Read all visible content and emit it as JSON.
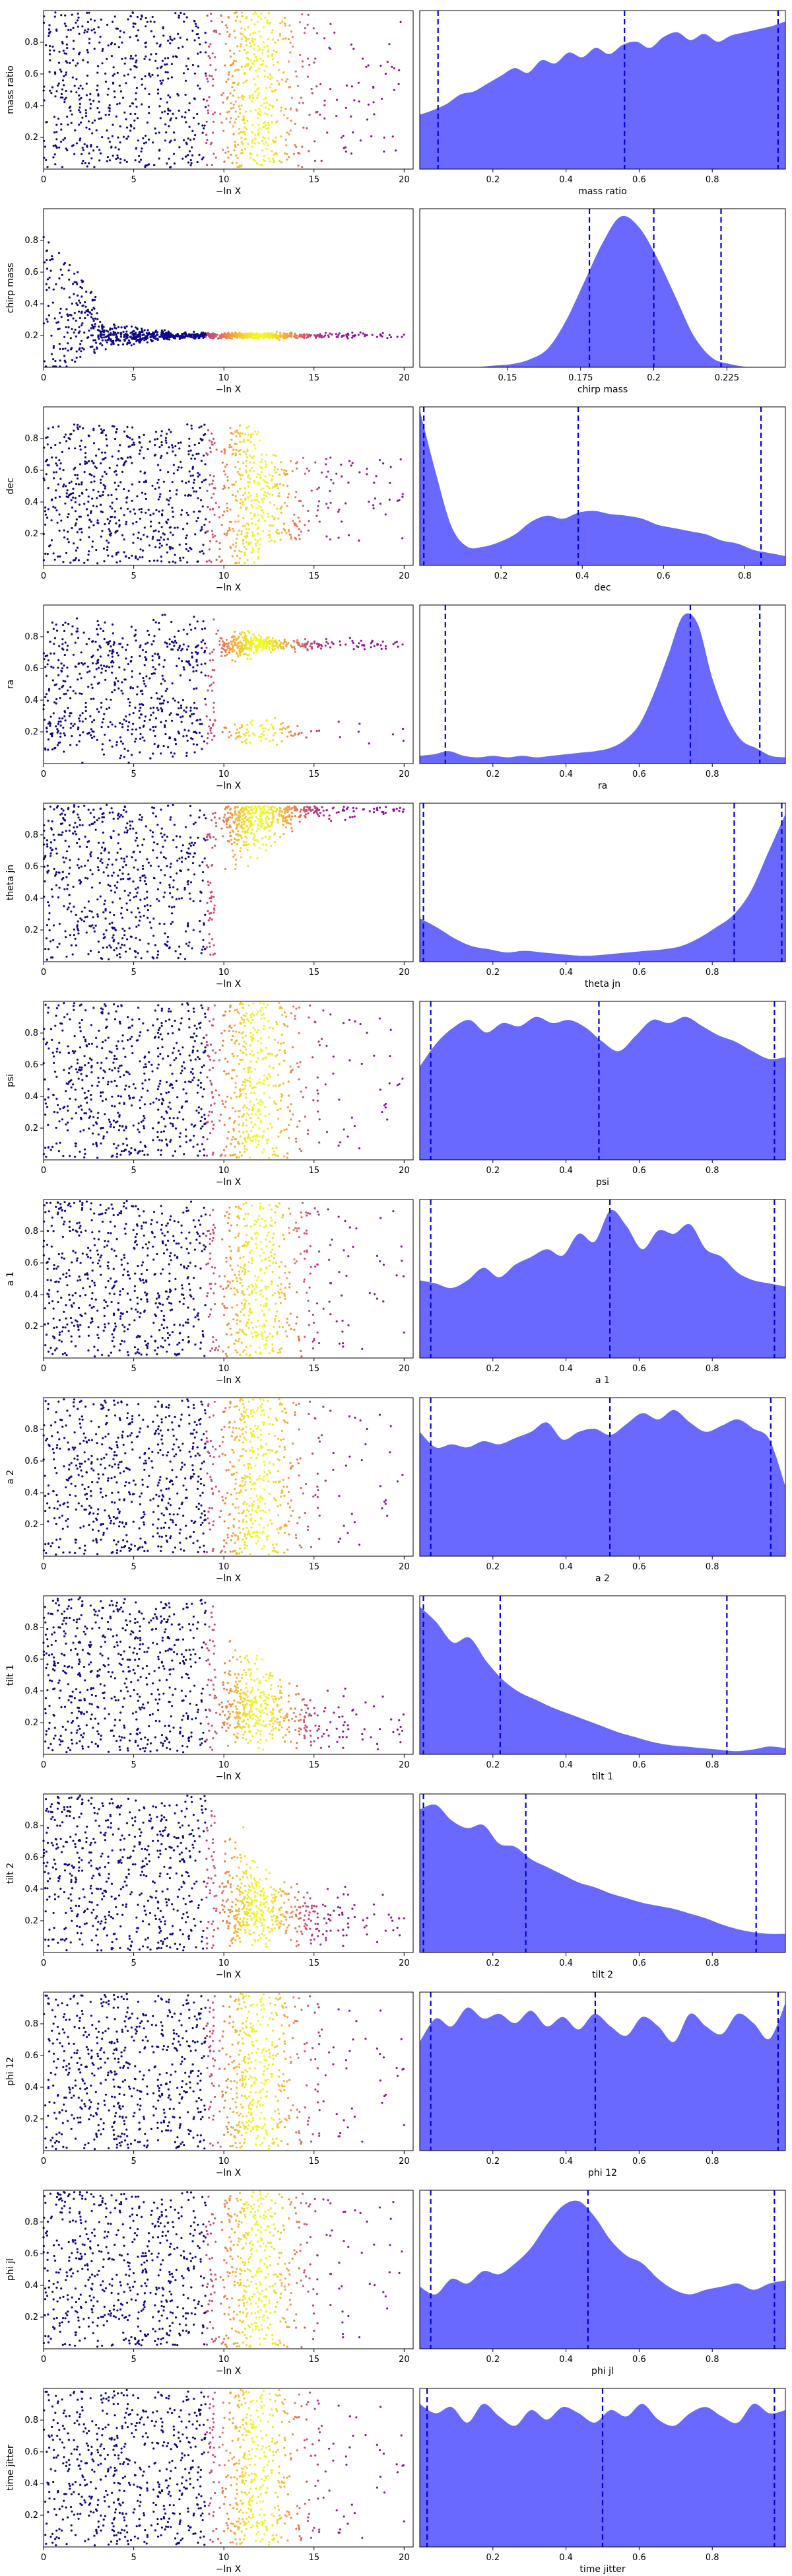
{
  "chart_data": [
    {
      "type": "scatter",
      "panel": "trace",
      "ylabel": "mass ratio",
      "xlabel": "−ln X",
      "xlim": [
        0,
        20.5
      ],
      "ylim": [
        0,
        1
      ],
      "xticks": [
        0,
        5,
        10,
        15,
        20
      ],
      "yticks": [
        0.2,
        0.4,
        0.6,
        0.8
      ],
      "pattern": "uniform",
      "colormap": "plasma"
    },
    {
      "type": "area",
      "panel": "posterior",
      "xlabel": "mass ratio",
      "xlim": [
        0,
        1
      ],
      "xticks": [
        0.2,
        0.4,
        0.6,
        0.8
      ],
      "quantile_lines": [
        0.05,
        0.56,
        0.98
      ],
      "density_profile": [
        0.35,
        0.38,
        0.42,
        0.48,
        0.5,
        0.55,
        0.6,
        0.65,
        0.62,
        0.7,
        0.68,
        0.75,
        0.72,
        0.78,
        0.74,
        0.8,
        0.82,
        0.78,
        0.85,
        0.88,
        0.83,
        0.87,
        0.82,
        0.86,
        0.88,
        0.9,
        0.92,
        0.95
      ],
      "color": "#4444ff"
    },
    {
      "type": "scatter",
      "panel": "trace",
      "ylabel": "chirp mass",
      "xlabel": "−ln X",
      "xlim": [
        0,
        20.5
      ],
      "ylim": [
        0,
        1
      ],
      "xticks": [
        0,
        5,
        10,
        15,
        20
      ],
      "yticks": [
        0.2,
        0.4,
        0.6,
        0.8
      ],
      "pattern": "converge",
      "center": 0.2,
      "colormap": "plasma"
    },
    {
      "type": "area",
      "panel": "posterior",
      "xlabel": "chirp mass",
      "xlim": [
        0.12,
        0.245
      ],
      "xticks": [
        0.15,
        0.175,
        0.2,
        0.225
      ],
      "quantile_lines": [
        0.178,
        0.2,
        0.223
      ],
      "density_profile": [
        0,
        0,
        0,
        0,
        0.01,
        0.02,
        0.05,
        0.12,
        0.3,
        0.55,
        0.8,
        0.97,
        0.9,
        0.7,
        0.45,
        0.2,
        0.06,
        0.02,
        0,
        0,
        0
      ],
      "color": "#4444ff"
    },
    {
      "type": "scatter",
      "panel": "trace",
      "ylabel": "dec",
      "xlabel": "−ln X",
      "xlim": [
        0,
        20.5
      ],
      "ylim": [
        0,
        1
      ],
      "xticks": [
        0,
        5,
        10,
        15,
        20
      ],
      "yticks": [
        0.2,
        0.4,
        0.6,
        0.8
      ],
      "pattern": "uniform-cap",
      "cap": 0.88,
      "colormap": "plasma"
    },
    {
      "type": "area",
      "panel": "posterior",
      "xlabel": "dec",
      "xlim": [
        0,
        0.9
      ],
      "xticks": [
        0.2,
        0.4,
        0.6,
        0.8
      ],
      "quantile_lines": [
        0.01,
        0.39,
        0.84
      ],
      "density_profile": [
        1.0,
        0.6,
        0.25,
        0.12,
        0.12,
        0.15,
        0.2,
        0.28,
        0.32,
        0.3,
        0.34,
        0.35,
        0.33,
        0.32,
        0.3,
        0.26,
        0.24,
        0.22,
        0.2,
        0.16,
        0.14,
        0.1,
        0.08,
        0.06
      ],
      "color": "#4444ff"
    },
    {
      "type": "scatter",
      "panel": "trace",
      "ylabel": "ra",
      "xlabel": "−ln X",
      "xlim": [
        0,
        20.5
      ],
      "ylim": [
        0,
        1
      ],
      "xticks": [
        0,
        5,
        10,
        15,
        20
      ],
      "yticks": [
        0.2,
        0.4,
        0.6,
        0.8
      ],
      "pattern": "bands",
      "centers": [
        0.75,
        0.62,
        0.35,
        0.2
      ],
      "colormap": "plasma"
    },
    {
      "type": "area",
      "panel": "posterior",
      "xlabel": "ra",
      "xlim": [
        0,
        1
      ],
      "xticks": [
        0.2,
        0.4,
        0.6,
        0.8
      ],
      "quantile_lines": [
        0.07,
        0.74,
        0.93
      ],
      "density_profile": [
        0.05,
        0.06,
        0.08,
        0.05,
        0.04,
        0.05,
        0.04,
        0.05,
        0.04,
        0.05,
        0.06,
        0.07,
        0.08,
        0.1,
        0.15,
        0.25,
        0.45,
        0.7,
        0.95,
        0.9,
        0.55,
        0.3,
        0.15,
        0.1,
        0.05,
        0.04
      ],
      "color": "#4444ff"
    },
    {
      "type": "scatter",
      "panel": "trace",
      "ylabel": "theta jn",
      "xlabel": "−ln X",
      "xlim": [
        0,
        20.5
      ],
      "ylim": [
        0,
        1
      ],
      "xticks": [
        0,
        5,
        10,
        15,
        20
      ],
      "yticks": [
        0.2,
        0.4,
        0.6,
        0.8
      ],
      "pattern": "upper",
      "colormap": "plasma"
    },
    {
      "type": "area",
      "panel": "posterior",
      "xlabel": "theta jn",
      "xlim": [
        0,
        1
      ],
      "xticks": [
        0.2,
        0.4,
        0.6,
        0.8
      ],
      "quantile_lines": [
        0.01,
        0.86,
        0.99
      ],
      "density_profile": [
        0.28,
        0.22,
        0.15,
        0.1,
        0.08,
        0.06,
        0.07,
        0.06,
        0.05,
        0.04,
        0.04,
        0.05,
        0.06,
        0.07,
        0.08,
        0.1,
        0.15,
        0.22,
        0.3,
        0.45,
        0.7,
        0.95
      ],
      "color": "#4444ff"
    },
    {
      "type": "scatter",
      "panel": "trace",
      "ylabel": "psi",
      "xlabel": "−ln X",
      "xlim": [
        0,
        20.5
      ],
      "ylim": [
        0,
        1
      ],
      "xticks": [
        0,
        5,
        10,
        15,
        20
      ],
      "yticks": [
        0.2,
        0.4,
        0.6,
        0.8
      ],
      "pattern": "uniform",
      "colormap": "plasma"
    },
    {
      "type": "area",
      "panel": "posterior",
      "xlabel": "psi",
      "xlim": [
        0,
        1
      ],
      "xticks": [
        0.2,
        0.4,
        0.6,
        0.8
      ],
      "quantile_lines": [
        0.03,
        0.49,
        0.97
      ],
      "density_profile": [
        0.6,
        0.75,
        0.85,
        0.9,
        0.82,
        0.88,
        0.86,
        0.92,
        0.88,
        0.9,
        0.85,
        0.76,
        0.7,
        0.8,
        0.9,
        0.88,
        0.92,
        0.86,
        0.8,
        0.76,
        0.7,
        0.65,
        0.66
      ],
      "color": "#4444ff"
    },
    {
      "type": "scatter",
      "panel": "trace",
      "ylabel": "a 1",
      "xlabel": "−ln X",
      "xlim": [
        0,
        20.5
      ],
      "ylim": [
        0,
        1
      ],
      "xticks": [
        0,
        5,
        10,
        15,
        20
      ],
      "yticks": [
        0.2,
        0.4,
        0.6,
        0.8
      ],
      "pattern": "uniform",
      "colormap": "plasma"
    },
    {
      "type": "area",
      "panel": "posterior",
      "xlabel": "a 1",
      "xlim": [
        0,
        1
      ],
      "xticks": [
        0.2,
        0.4,
        0.6,
        0.8
      ],
      "quantile_lines": [
        0.03,
        0.52,
        0.97
      ],
      "density_profile": [
        0.5,
        0.48,
        0.45,
        0.5,
        0.58,
        0.52,
        0.6,
        0.65,
        0.7,
        0.66,
        0.8,
        0.75,
        0.95,
        0.85,
        0.7,
        0.82,
        0.8,
        0.86,
        0.7,
        0.65,
        0.55,
        0.5,
        0.48,
        0.46
      ],
      "color": "#4444ff"
    },
    {
      "type": "scatter",
      "panel": "trace",
      "ylabel": "a 2",
      "xlabel": "−ln X",
      "xlim": [
        0,
        20.5
      ],
      "ylim": [
        0,
        1
      ],
      "xticks": [
        0,
        5,
        10,
        15,
        20
      ],
      "yticks": [
        0.2,
        0.4,
        0.6,
        0.8
      ],
      "pattern": "uniform",
      "colormap": "plasma"
    },
    {
      "type": "area",
      "panel": "posterior",
      "xlabel": "a 2",
      "xlim": [
        0,
        1
      ],
      "xticks": [
        0.2,
        0.4,
        0.6,
        0.8
      ],
      "quantile_lines": [
        0.03,
        0.52,
        0.96
      ],
      "density_profile": [
        0.8,
        0.7,
        0.72,
        0.7,
        0.74,
        0.72,
        0.76,
        0.8,
        0.86,
        0.75,
        0.8,
        0.82,
        0.78,
        0.85,
        0.92,
        0.88,
        0.94,
        0.86,
        0.8,
        0.84,
        0.88,
        0.82,
        0.75,
        0.45
      ],
      "color": "#4444ff"
    },
    {
      "type": "scatter",
      "panel": "trace",
      "ylabel": "tilt 1",
      "xlabel": "−ln X",
      "xlim": [
        0,
        20.5
      ],
      "ylim": [
        0,
        1
      ],
      "xticks": [
        0,
        5,
        10,
        15,
        20
      ],
      "yticks": [
        0.2,
        0.4,
        0.6,
        0.8
      ],
      "pattern": "lower",
      "colormap": "plasma"
    },
    {
      "type": "area",
      "panel": "posterior",
      "xlabel": "tilt 1",
      "xlim": [
        0,
        1
      ],
      "xticks": [
        0.2,
        0.4,
        0.6,
        0.8
      ],
      "quantile_lines": [
        0.01,
        0.22,
        0.84
      ],
      "density_profile": [
        0.95,
        0.85,
        0.72,
        0.75,
        0.6,
        0.48,
        0.4,
        0.35,
        0.3,
        0.26,
        0.22,
        0.18,
        0.14,
        0.11,
        0.08,
        0.06,
        0.05,
        0.04,
        0.03,
        0.02,
        0.03,
        0.05,
        0.04
      ],
      "color": "#4444ff"
    },
    {
      "type": "scatter",
      "panel": "trace",
      "ylabel": "tilt 2",
      "xlabel": "−ln X",
      "xlim": [
        0,
        20.5
      ],
      "ylim": [
        0,
        1
      ],
      "xticks": [
        0,
        5,
        10,
        15,
        20
      ],
      "yticks": [
        0.2,
        0.4,
        0.6,
        0.8
      ],
      "pattern": "lower",
      "colormap": "plasma"
    },
    {
      "type": "area",
      "panel": "posterior",
      "xlabel": "tilt 2",
      "xlim": [
        0,
        1
      ],
      "xticks": [
        0.2,
        0.4,
        0.6,
        0.8
      ],
      "quantile_lines": [
        0.01,
        0.29,
        0.92
      ],
      "density_profile": [
        0.92,
        0.95,
        0.85,
        0.8,
        0.82,
        0.7,
        0.68,
        0.6,
        0.55,
        0.5,
        0.45,
        0.42,
        0.38,
        0.35,
        0.32,
        0.3,
        0.28,
        0.25,
        0.22,
        0.18,
        0.15,
        0.13,
        0.12,
        0.12
      ],
      "color": "#4444ff"
    },
    {
      "type": "scatter",
      "panel": "trace",
      "ylabel": "phi 12",
      "xlabel": "−ln X",
      "xlim": [
        0,
        20.5
      ],
      "ylim": [
        0,
        1
      ],
      "xticks": [
        0,
        5,
        10,
        15,
        20
      ],
      "yticks": [
        0.2,
        0.4,
        0.6,
        0.8
      ],
      "pattern": "uniform",
      "colormap": "plasma"
    },
    {
      "type": "area",
      "panel": "posterior",
      "xlabel": "phi 12",
      "xlim": [
        0,
        1
      ],
      "xticks": [
        0.2,
        0.4,
        0.6,
        0.8
      ],
      "quantile_lines": [
        0.03,
        0.48,
        0.98
      ],
      "density_profile": [
        0.7,
        0.85,
        0.8,
        0.92,
        0.85,
        0.88,
        0.82,
        0.9,
        0.8,
        0.86,
        0.78,
        0.88,
        0.8,
        0.74,
        0.86,
        0.8,
        0.7,
        0.88,
        0.8,
        0.75,
        0.88,
        0.82,
        0.72,
        0.95
      ],
      "color": "#4444ff"
    },
    {
      "type": "scatter",
      "panel": "trace",
      "ylabel": "phi jl",
      "xlabel": "−ln X",
      "xlim": [
        0,
        20.5
      ],
      "ylim": [
        0,
        1
      ],
      "xticks": [
        0,
        5,
        10,
        15,
        20
      ],
      "yticks": [
        0.2,
        0.4,
        0.6,
        0.8
      ],
      "pattern": "uniform",
      "colormap": "plasma"
    },
    {
      "type": "area",
      "panel": "posterior",
      "xlabel": "phi jl",
      "xlim": [
        0,
        1
      ],
      "xticks": [
        0.2,
        0.4,
        0.6,
        0.8
      ],
      "quantile_lines": [
        0.03,
        0.46,
        0.97
      ],
      "density_profile": [
        0.4,
        0.35,
        0.45,
        0.42,
        0.5,
        0.48,
        0.55,
        0.65,
        0.8,
        0.92,
        0.95,
        0.85,
        0.7,
        0.6,
        0.55,
        0.45,
        0.38,
        0.35,
        0.38,
        0.4,
        0.42,
        0.38,
        0.42,
        0.44
      ],
      "color": "#4444ff"
    },
    {
      "type": "scatter",
      "panel": "trace",
      "ylabel": "time jitter",
      "xlabel": "−ln X",
      "xlim": [
        0,
        20.5
      ],
      "ylim": [
        0,
        1
      ],
      "xticks": [
        0,
        5,
        10,
        15,
        20
      ],
      "yticks": [
        0.2,
        0.4,
        0.6,
        0.8
      ],
      "pattern": "uniform",
      "colormap": "plasma"
    },
    {
      "type": "area",
      "panel": "posterior",
      "xlabel": "time jitter",
      "xlim": [
        0,
        1
      ],
      "xticks": [
        0.2,
        0.4,
        0.6,
        0.8
      ],
      "quantile_lines": [
        0.02,
        0.5,
        0.97
      ],
      "density_profile": [
        0.92,
        0.86,
        0.9,
        0.8,
        0.92,
        0.84,
        0.78,
        0.88,
        0.82,
        0.9,
        0.86,
        0.8,
        0.88,
        0.84,
        0.92,
        0.82,
        0.78,
        0.86,
        0.9,
        0.84,
        0.8,
        0.92,
        0.86,
        0.88
      ],
      "color": "#4444ff"
    }
  ]
}
